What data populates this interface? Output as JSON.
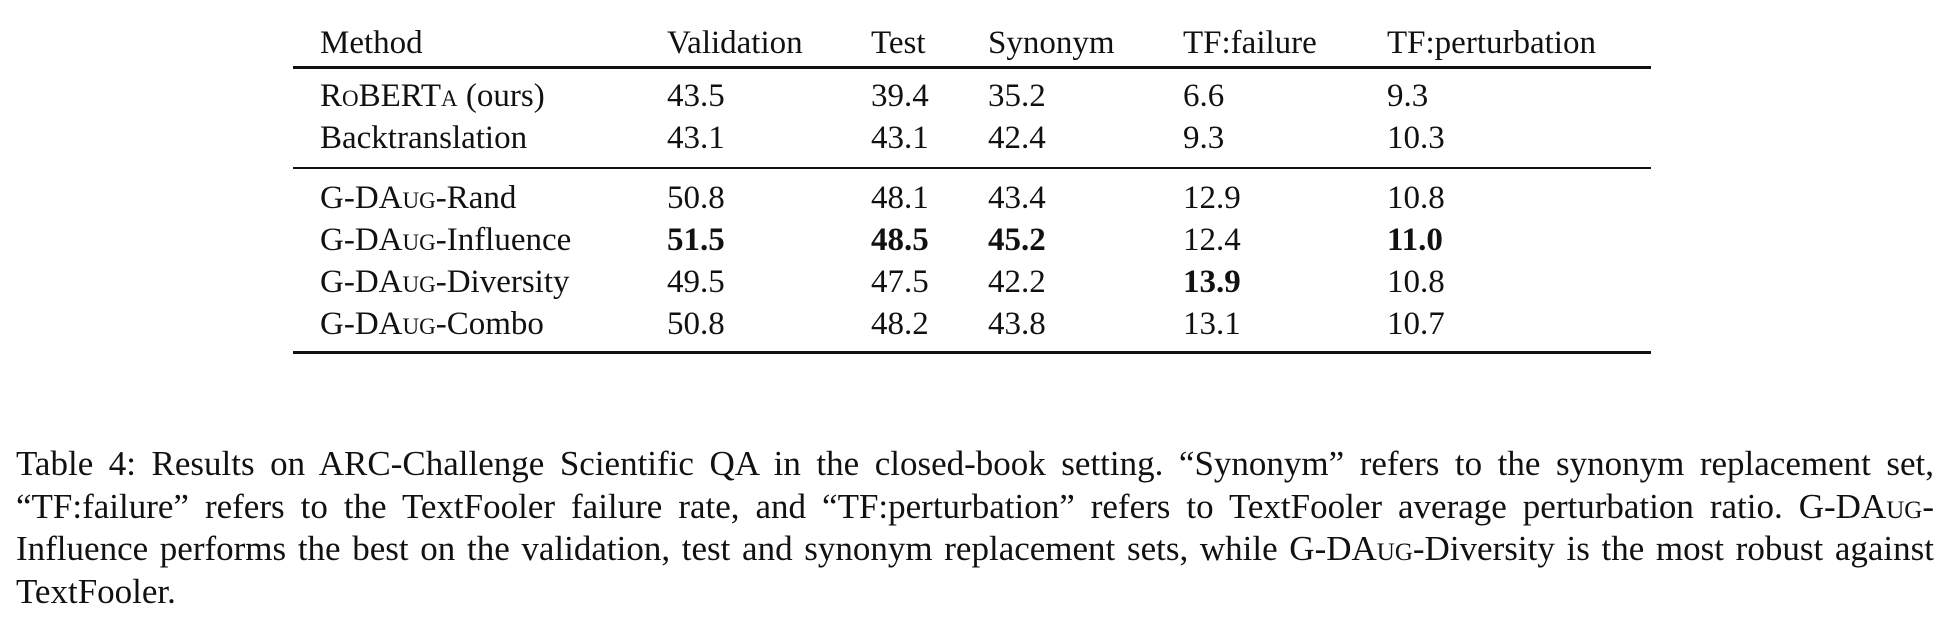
{
  "table": {
    "headers": [
      "Method",
      "Validation",
      "Test",
      "Synonym",
      "TF:failure",
      "TF:perturbation"
    ],
    "groups": [
      [
        {
          "method": "RoBERTa (ours)",
          "values": [
            "43.5",
            "39.4",
            "35.2",
            "6.6",
            "9.3"
          ],
          "bold": [
            false,
            false,
            false,
            false,
            false
          ]
        },
        {
          "method": "Backtranslation",
          "values": [
            "43.1",
            "43.1",
            "42.4",
            "9.3",
            "10.3"
          ],
          "bold": [
            false,
            false,
            false,
            false,
            false
          ]
        }
      ],
      [
        {
          "method": "G-DAug-Rand",
          "values": [
            "50.8",
            "48.1",
            "43.4",
            "12.9",
            "10.8"
          ],
          "bold": [
            false,
            false,
            false,
            false,
            false
          ]
        },
        {
          "method": "G-DAug-Influence",
          "values": [
            "51.5",
            "48.5",
            "45.2",
            "12.4",
            "11.0"
          ],
          "bold": [
            true,
            true,
            true,
            false,
            true
          ]
        },
        {
          "method": "G-DAug-Diversity",
          "values": [
            "49.5",
            "47.5",
            "42.2",
            "13.9",
            "10.8"
          ],
          "bold": [
            false,
            false,
            false,
            true,
            false
          ]
        },
        {
          "method": "G-DAug-Combo",
          "values": [
            "50.8",
            "48.2",
            "43.8",
            "13.1",
            "10.7"
          ],
          "bold": [
            false,
            false,
            false,
            false,
            false
          ]
        }
      ]
    ]
  },
  "caption": {
    "label": "Table 4:",
    "text": "Results on ARC-Challenge Scientific QA in the closed-book setting. “Synonym” refers to the synonym replacement set, “TF:failure” refers to the TextFooler failure rate, and “TF:perturbation” refers to TextFooler average perturbation ratio. G-DAug-Influence performs the best on the validation, test and synonym replacement sets, while G-DAug-Diversity is the most robust against TextFooler."
  }
}
